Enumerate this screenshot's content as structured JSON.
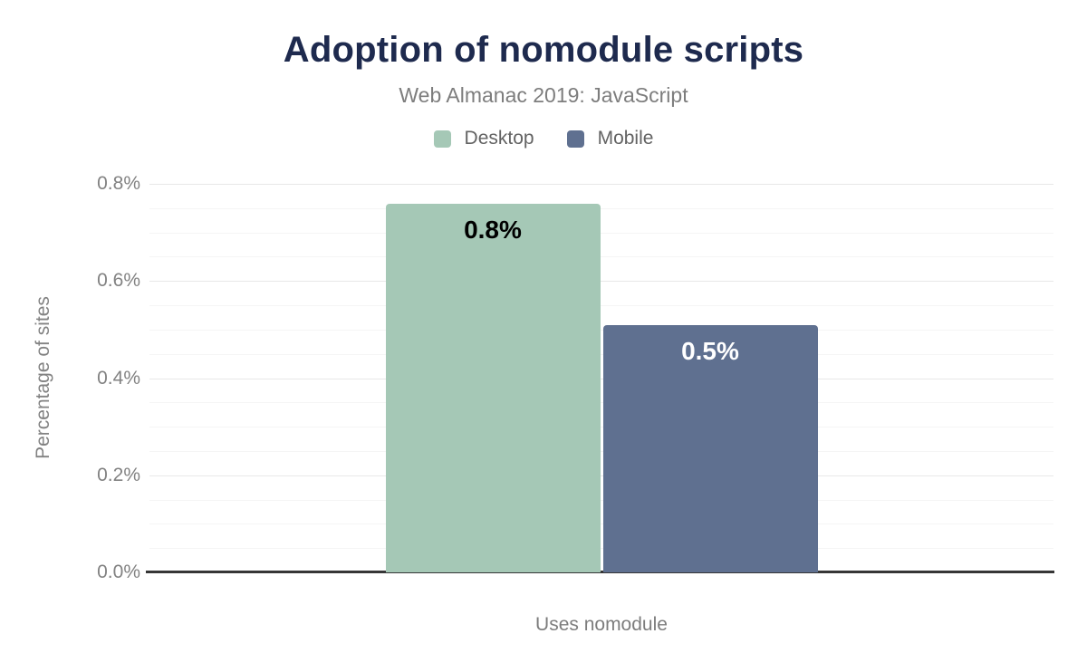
{
  "header": {
    "title": "Adoption of nomodule scripts",
    "subtitle": "Web Almanac 2019: JavaScript"
  },
  "chart_data": {
    "type": "bar",
    "title": "Adoption of nomodule scripts",
    "subtitle": "Web Almanac 2019: JavaScript",
    "categories": [
      "Uses nomodule"
    ],
    "series": [
      {
        "name": "Desktop",
        "color": "#a5c8b6",
        "values": [
          0.76
        ],
        "data_labels": [
          "0.8%"
        ],
        "label_color": "#000000"
      },
      {
        "name": "Mobile",
        "color": "#5f7090",
        "values": [
          0.51
        ],
        "data_labels": [
          "0.5%"
        ],
        "label_color": "#ffffff"
      }
    ],
    "xlabel": "Uses nomodule",
    "ylabel": "Percentage of sites",
    "ylim": [
      0,
      0.8
    ],
    "yticks": {
      "values": [
        0,
        0.2,
        0.4,
        0.6,
        0.8
      ],
      "labels": [
        "0.0%",
        "0.2%",
        "0.4%",
        "0.6%",
        "0.8%"
      ]
    },
    "minor_gridline_step": 0.05,
    "grid": true,
    "legend_position": "top",
    "colors": {
      "title": "#1e2a4e",
      "muted_text": "#7d7d7d",
      "axis_line": "#363636",
      "gridline_major": "#e8e8e8",
      "gridline_minor": "#f5f5f5"
    }
  }
}
